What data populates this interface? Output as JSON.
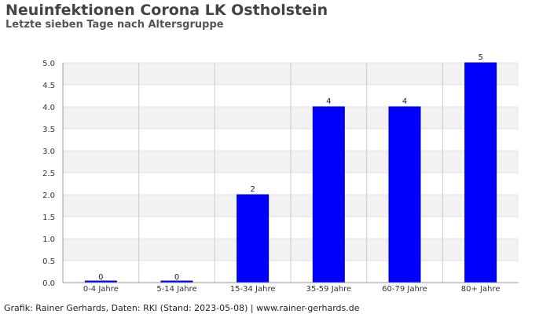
{
  "header": {
    "title": "Neuinfektionen Corona LK Ostholstein",
    "subtitle": "Letzte sieben Tage nach Altersgruppe"
  },
  "footer": {
    "credit": "Grafik: Rainer Gerhards, Daten: RKI (Stand: 2023-05-08) | www.rainer-gerhards.de"
  },
  "colors": {
    "bar": "#0000ff",
    "grid_band": "#f2f2f2",
    "grid_line": "#cccccc",
    "axis_text": "#333333",
    "label_text": "#1a1a4a"
  },
  "chart_data": {
    "type": "bar",
    "title": "Neuinfektionen Corona LK Ostholstein",
    "subtitle": "Letzte sieben Tage nach Altersgruppe",
    "xlabel": "",
    "ylabel": "",
    "categories": [
      "0-4 Jahre",
      "5-14 Jahre",
      "15-34 Jahre",
      "35-59 Jahre",
      "60-79 Jahre",
      "80+ Jahre"
    ],
    "values": [
      0,
      0,
      2,
      4,
      4,
      5
    ],
    "ylim": [
      0,
      5
    ],
    "yticks": [
      "0.0",
      "0.5",
      "1.0",
      "1.5",
      "2.0",
      "2.5",
      "3.0",
      "3.5",
      "4.0",
      "4.5",
      "5.0"
    ],
    "grid": true,
    "data_labels": true
  }
}
